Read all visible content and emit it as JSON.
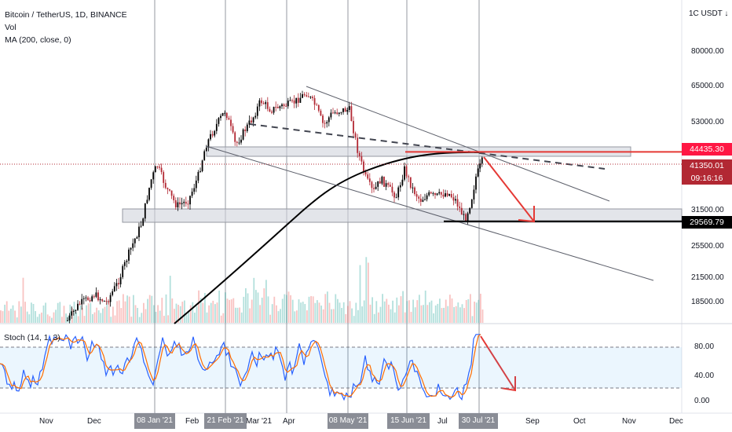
{
  "header": {
    "title": "Bitcoin / TetherUS, 1D, BINANCE",
    "vol_label": "Vol",
    "ma_label": "MA (200, close, 0)",
    "currency": "1C USDT ↓"
  },
  "stoch_label": "Stoch (14, 1, 3)",
  "price_axis": {
    "ticks": [
      "80000.00",
      "65000.00",
      "53000.00",
      "31500.00",
      "25500.00",
      "21500.00",
      "18500.00"
    ],
    "tags": {
      "resistance": "44435.30",
      "last": "41350.01",
      "countdown": "09:16:16",
      "support": "29569.79"
    }
  },
  "stoch_axis": {
    "ticks": [
      "80.00",
      "40.00",
      "0.00"
    ]
  },
  "time_axis": {
    "ticks": [
      "Nov",
      "Dec",
      "Feb",
      "Mar '21",
      "Apr",
      "Jul",
      "Sep",
      "Oct",
      "Nov",
      "Dec"
    ],
    "highlighted": [
      "08 Jan '21",
      "21 Feb '21",
      "08 May '21",
      "15 Jun '21",
      "30 Jul '21"
    ]
  },
  "colors": {
    "up_candle": "#000000",
    "down_candle": "#b22833",
    "ma_line": "#000000",
    "arrow": "#e53935",
    "resistance_line": "#e53935",
    "stoch_k": "#2962ff",
    "stoch_d": "#ff6d00",
    "zone_fill": "#d1d4dc"
  },
  "chart_data": {
    "type": "candlestick",
    "symbol": "Bitcoin / TetherUS",
    "interval": "1D",
    "exchange": "BINANCE",
    "price_range": [
      16000,
      90000
    ],
    "scale": "log",
    "key_levels": {
      "resistance": 44435.3,
      "last_price": 41350.01,
      "support": 29569.79
    },
    "stochastic": {
      "k_period": 14,
      "k_smooth": 1,
      "d_smooth": 3,
      "levels": [
        20,
        80
      ],
      "range": [
        0,
        100
      ]
    },
    "moving_average": {
      "period": 200,
      "source": "close"
    },
    "markers": [
      "08 Jan '21",
      "21 Feb '21",
      "08 May '21",
      "15 Jun '21",
      "30 Jul '21"
    ]
  }
}
